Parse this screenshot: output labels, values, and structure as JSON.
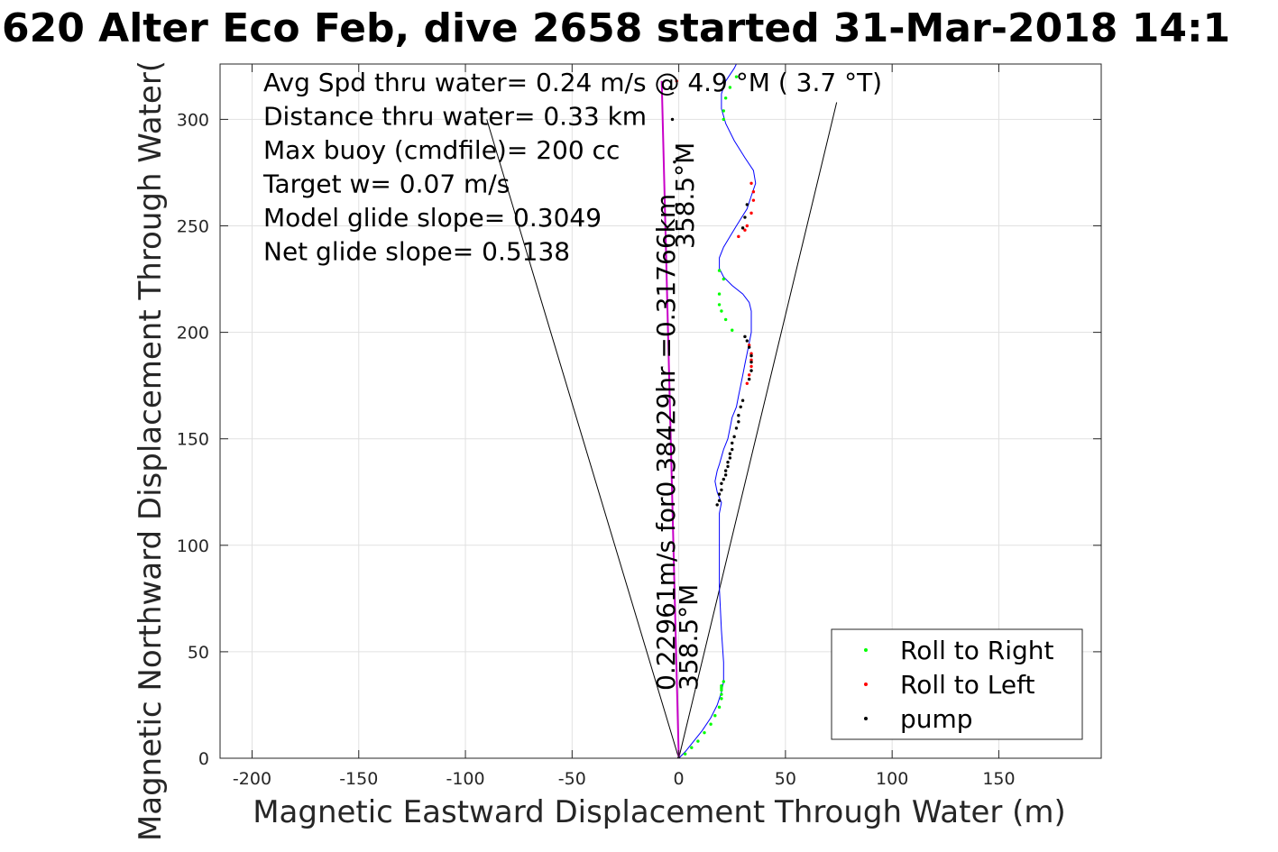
{
  "chart_data": {
    "type": "scatter",
    "title": "620 Alter Eco Feb, dive 2658 started 31-Mar-2018 14:1",
    "xlabel": "Magnetic Eastward Displacement Through Water (m)",
    "ylabel": "Magnetic Northward Displacement Through Water(",
    "xlim": [
      -215,
      198
    ],
    "ylim": [
      0,
      326
    ],
    "xticks": [
      -200,
      -150,
      -100,
      -50,
      0,
      50,
      100,
      150
    ],
    "xtick_labels": [
      "-200",
      "-150",
      "-100",
      "-50",
      "0",
      "50",
      "100",
      "150"
    ],
    "yticks": [
      0,
      50,
      100,
      150,
      200,
      250,
      300
    ],
    "ytick_labels": [
      "0",
      "50",
      "100",
      "150",
      "200",
      "250",
      "300"
    ],
    "grid": true,
    "legend_position": "bottom-right",
    "info_lines": [
      "Avg Spd thru water=  0.24 m/s @   4.9 °M (  3.7 °T)",
      "Distance thru water=  0.33 km",
      "Max buoy (cmdfile)= 200 cc",
      "Target w= 0.07 m/s",
      "Model glide slope= 0.3049",
      "Net glide slope= 0.5138"
    ],
    "rotated_labels": [
      {
        "text": "358.5°M",
        "x": 0,
        "y": 0
      },
      {
        "text": "0.22961m/s for0.38429hr =0.31766km",
        "x": -8,
        "y": 0
      },
      {
        "text": "358.5°M",
        "x": 1,
        "y": 122
      }
    ],
    "glide_cone_lines": [
      {
        "x": [
          0,
          -90
        ],
        "y": [
          0,
          300
        ]
      },
      {
        "x": [
          0,
          74
        ],
        "y": [
          0,
          308
        ]
      }
    ],
    "heading_line": {
      "x": [
        0,
        -8
      ],
      "y": [
        0,
        318
      ],
      "color": "#c800c8"
    },
    "track": {
      "color": "#0000ff",
      "x": [
        0,
        3,
        7,
        11,
        15,
        18,
        20,
        21,
        21,
        20,
        19,
        19,
        19,
        20,
        18,
        17,
        18,
        19,
        21,
        23,
        24,
        25,
        27,
        28,
        29,
        30,
        31,
        32,
        33,
        34,
        34,
        34,
        33,
        30,
        25,
        21,
        19,
        19,
        21,
        24,
        27,
        32,
        34,
        36,
        35,
        31,
        26,
        22,
        20,
        20,
        22,
        26,
        29
      ],
      "y": [
        0,
        3,
        8,
        13,
        19,
        25,
        31,
        36,
        45,
        60,
        80,
        100,
        115,
        120,
        125,
        130,
        135,
        138,
        145,
        150,
        155,
        160,
        165,
        170,
        175,
        180,
        185,
        190,
        195,
        200,
        205,
        210,
        214,
        218,
        222,
        226,
        230,
        235,
        240,
        245,
        250,
        258,
        264,
        270,
        276,
        282,
        290,
        298,
        305,
        312,
        318,
        324,
        330
      ]
    },
    "series": [
      {
        "name": "Roll to Right",
        "color": "#00ff00",
        "x": [
          3,
          6,
          9,
          12,
          15,
          17,
          19,
          20,
          20,
          20,
          20,
          20,
          21,
          21,
          19,
          19,
          19,
          20,
          22,
          25,
          21,
          21,
          22,
          24,
          27
        ],
        "y": [
          2,
          5,
          8,
          12,
          16,
          20,
          24,
          28,
          30,
          32,
          33,
          34,
          36,
          225,
          218,
          213,
          229,
          210,
          206,
          201,
          304,
          300,
          310,
          315,
          320
        ]
      },
      {
        "name": "Roll to Left",
        "color": "#ff0000",
        "x": [
          33,
          34,
          34,
          34,
          33,
          32,
          32,
          34,
          35,
          35,
          34,
          31,
          28,
          -1
        ],
        "y": [
          194,
          190,
          187,
          184,
          180,
          176,
          250,
          256,
          262,
          266,
          270,
          248,
          245,
          318
        ]
      },
      {
        "name": "pump",
        "color": "#000000",
        "x": [
          0,
          18,
          19,
          19,
          20,
          20,
          21,
          22,
          22,
          23,
          23,
          24,
          24,
          25,
          25,
          26,
          27,
          28,
          28,
          29,
          30,
          31,
          32,
          33,
          34,
          34,
          34,
          33,
          32,
          31,
          30,
          -1,
          -2,
          -3,
          -4
        ],
        "y": [
          0,
          119,
          121,
          124,
          126,
          129,
          131,
          133,
          135,
          137,
          139,
          141,
          143,
          145,
          148,
          151,
          155,
          158,
          161,
          165,
          168,
          198,
          196,
          193,
          189,
          186,
          182,
          178,
          260,
          254,
          249,
          260,
          280,
          300,
          315
        ]
      }
    ]
  }
}
